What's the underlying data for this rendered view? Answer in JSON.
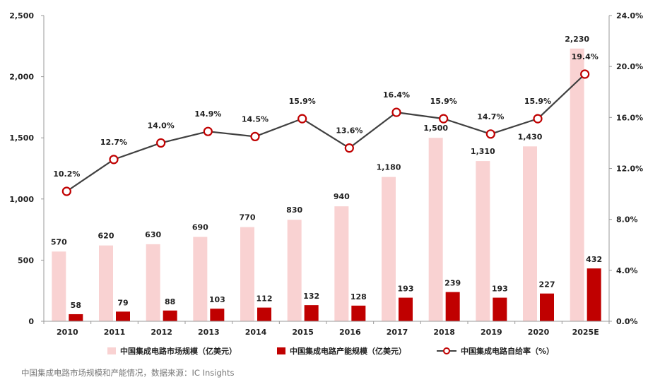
{
  "chart_data": {
    "type": "bar",
    "categories": [
      "2010",
      "2011",
      "2012",
      "2013",
      "2014",
      "2015",
      "2016",
      "2017",
      "2018",
      "2019",
      "2020",
      "2025E"
    ],
    "series": [
      {
        "name": "中国集成电路市场规模（亿美元）",
        "type": "bar",
        "axis": "left",
        "color": "#f9d2d2",
        "values": [
          570,
          620,
          630,
          690,
          770,
          830,
          940,
          1180,
          1500,
          1310,
          1430,
          2230
        ],
        "labels": [
          "570",
          "620",
          "630",
          "690",
          "770",
          "830",
          "940",
          "1,180",
          "1,500",
          "1,310",
          "1,430",
          "2,230"
        ]
      },
      {
        "name": "中国集成电路产能规模（亿美元）",
        "type": "bar",
        "axis": "left",
        "color": "#c00000",
        "values": [
          58,
          79,
          88,
          103,
          112,
          132,
          128,
          193,
          239,
          193,
          227,
          432
        ],
        "labels": [
          "58",
          "79",
          "88",
          "103",
          "112",
          "132",
          "128",
          "193",
          "239",
          "193",
          "227",
          "432"
        ]
      },
      {
        "name": "中国集成电路自给率（%）",
        "type": "line",
        "axis": "right",
        "color": "#404040",
        "marker_color": "#c00000",
        "values": [
          10.2,
          12.7,
          14.0,
          14.9,
          14.5,
          15.9,
          13.6,
          16.4,
          15.9,
          14.7,
          15.9,
          19.4
        ],
        "labels": [
          "10.2%",
          "12.7%",
          "14.0%",
          "14.9%",
          "14.5%",
          "15.9%",
          "13.6%",
          "16.4%",
          "15.9%",
          "14.7%",
          "15.9%",
          "19.4%"
        ]
      }
    ],
    "y_left": {
      "min": 0,
      "max": 2500,
      "ticks": [
        0,
        500,
        1000,
        1500,
        2000,
        2500
      ],
      "tick_labels": [
        "0",
        "500",
        "1,000",
        "1,500",
        "2,000",
        "2,500"
      ]
    },
    "y_right": {
      "min": 0,
      "max": 24,
      "ticks": [
        0,
        4,
        8,
        12,
        16,
        20,
        24
      ],
      "tick_labels": [
        "0.0%",
        "4.0%",
        "8.0%",
        "12.0%",
        "16.0%",
        "20.0%",
        "24.0%"
      ]
    },
    "grid": false,
    "legend_position": "bottom",
    "caption": "中国集成电路市场规模和产能情况，数据来源：IC Insights"
  }
}
